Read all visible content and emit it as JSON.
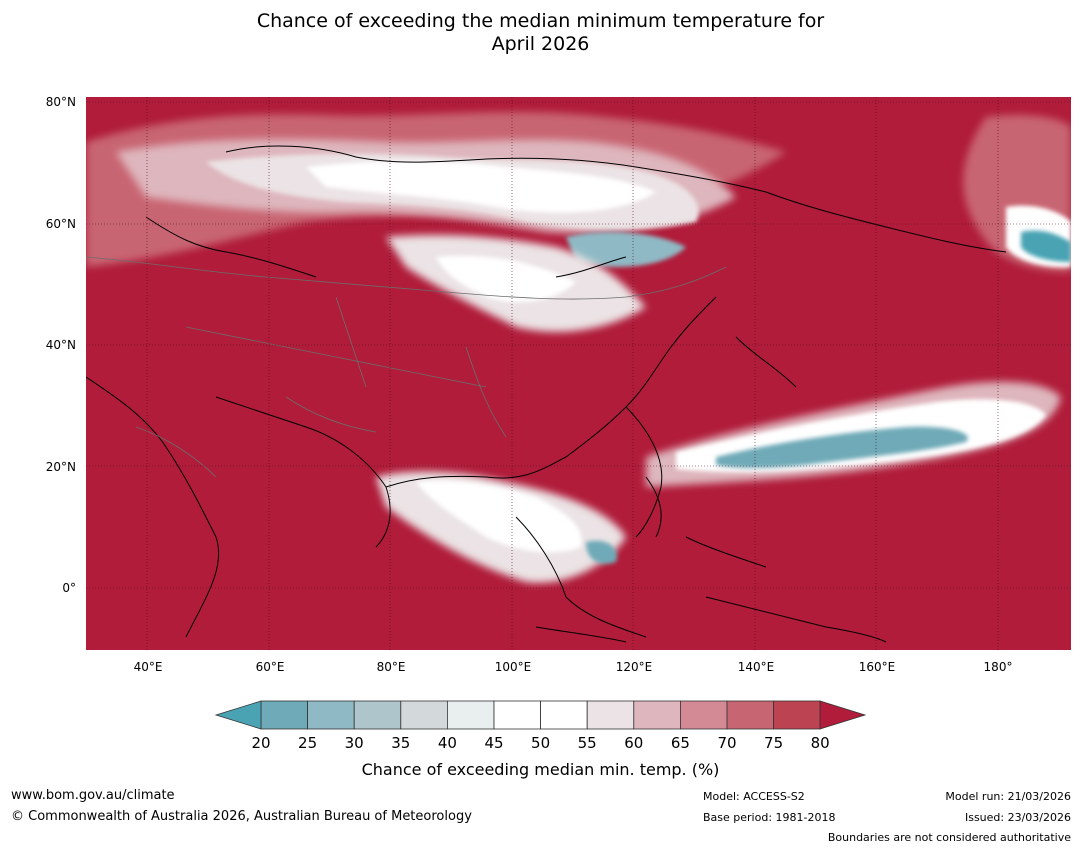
{
  "title_line1": "Chance of exceeding the median minimum temperature for",
  "title_line2": "April 2026",
  "lat_labels": [
    "80°N",
    "60°N",
    "40°N",
    "20°N",
    "0°"
  ],
  "lon_labels": [
    "40°E",
    "60°E",
    "80°E",
    "100°E",
    "120°E",
    "140°E",
    "160°E",
    "180°"
  ],
  "colorbar": {
    "ticks": [
      "20",
      "25",
      "30",
      "35",
      "40",
      "45",
      "50",
      "55",
      "60",
      "65",
      "70",
      "75",
      "80"
    ],
    "colors": [
      "#4aa3b3",
      "#6faab8",
      "#8fb9c4",
      "#aec6cb",
      "#d3d8da",
      "#e9eeef",
      "#ffffff",
      "#ffffff",
      "#ebe3e5",
      "#deb6bd",
      "#d38a95",
      "#c86572",
      "#bc4452",
      "#b01c3a"
    ],
    "label": "Chance of exceeding median min. temp. (%)"
  },
  "footer": {
    "url": "www.bom.gov.au/climate",
    "copyright": "© Commonwealth of Australia 2026, Australian Bureau of Meteorology",
    "model": "Model: ACCESS-S2",
    "base_period": "Base period: 1981-2018",
    "model_run": "Model run: 21/03/2026",
    "issued": "Issued: 23/03/2026",
    "boundaries": "Boundaries are not considered authoritative"
  }
}
